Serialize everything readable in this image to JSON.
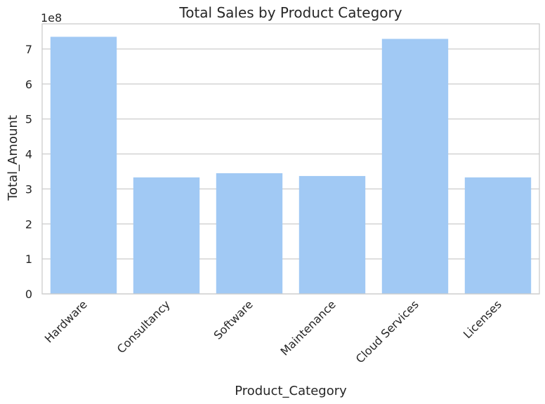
{
  "chart_data": {
    "type": "bar",
    "title": "Total Sales by Product Category",
    "xlabel": "Product_Category",
    "ylabel": "Total_Amount",
    "y_offset_label": "1e8",
    "categories": [
      "Hardware",
      "Consultancy",
      "Software",
      "Maintenance",
      "Cloud Services",
      "Licenses"
    ],
    "values": [
      735000000,
      333000000,
      345000000,
      337000000,
      729000000,
      333000000
    ],
    "y_ticks": [
      0,
      1,
      2,
      3,
      4,
      5,
      6,
      7
    ],
    "y_tick_labels": [
      "0",
      "1",
      "2",
      "3",
      "4",
      "5",
      "6",
      "7"
    ],
    "ylim": [
      0,
      772000000
    ],
    "grid": true,
    "bar_color": "#a1c9f4",
    "grid_color": "#cccccc",
    "spine_color": "#cccccc"
  }
}
